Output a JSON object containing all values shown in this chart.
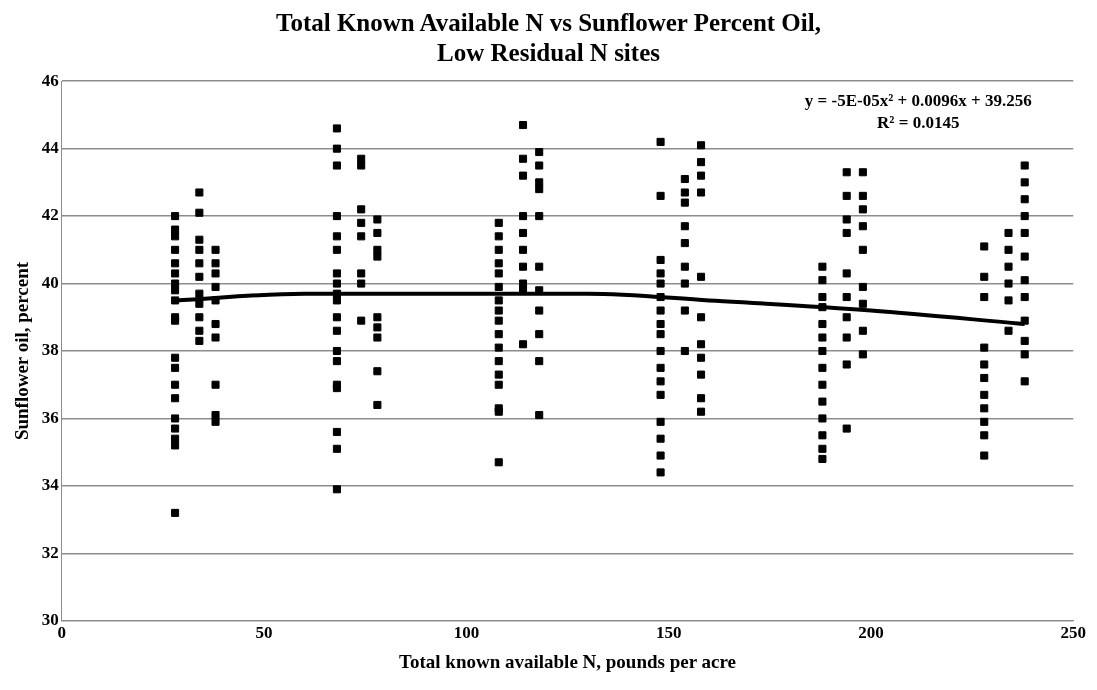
{
  "chart_data": {
    "type": "scatter",
    "title": "Total Known Available N vs Sunflower Percent Oil, Low Residual N sites",
    "xlabel": "Total known available N, pounds per acre",
    "ylabel": "Sunflower oil, percent",
    "xlim": [
      0,
      250
    ],
    "xticks": [
      0,
      50,
      100,
      150,
      200,
      250
    ],
    "ylim": [
      30,
      46
    ],
    "yticks": [
      30,
      32,
      34,
      36,
      38,
      40,
      42,
      44,
      46
    ],
    "grid": "y",
    "marker": "square",
    "annotations": [
      "y = -5E-05x² + 0.0096x + 39.256",
      "R² = 0.0145"
    ],
    "series": [
      {
        "color": "#000000",
        "x": [
          28,
          28,
          28,
          28,
          28,
          28,
          28,
          28,
          28,
          28,
          28,
          28,
          28,
          28,
          28,
          28,
          28,
          28,
          28,
          28,
          34,
          34,
          34,
          34,
          34,
          34,
          34,
          34,
          34,
          34,
          34,
          38,
          38,
          38,
          38,
          38,
          38,
          38,
          38,
          38,
          38,
          68,
          68,
          68,
          68,
          68,
          68,
          68,
          68,
          68,
          68,
          68,
          68,
          68,
          68,
          68,
          68,
          68,
          68,
          68,
          74,
          74,
          74,
          74,
          74,
          74,
          74,
          74,
          78,
          78,
          78,
          78,
          78,
          78,
          78,
          78,
          78,
          108,
          108,
          108,
          108,
          108,
          108,
          108,
          108,
          108,
          108,
          108,
          108,
          108,
          108,
          108,
          108,
          108,
          114,
          114,
          114,
          114,
          114,
          114,
          114,
          114,
          114,
          114,
          118,
          118,
          118,
          118,
          118,
          118,
          118,
          118,
          118,
          118,
          118,
          148,
          148,
          148,
          148,
          148,
          148,
          148,
          148,
          148,
          148,
          148,
          148,
          148,
          148,
          148,
          148,
          148,
          154,
          154,
          154,
          154,
          154,
          154,
          154,
          154,
          154,
          158,
          158,
          158,
          158,
          158,
          158,
          158,
          158,
          158,
          158,
          158,
          188,
          188,
          188,
          188,
          188,
          188,
          188,
          188,
          188,
          188,
          188,
          188,
          188,
          188,
          194,
          194,
          194,
          194,
          194,
          194,
          194,
          194,
          194,
          194,
          198,
          198,
          198,
          198,
          198,
          198,
          198,
          198,
          198,
          228,
          228,
          228,
          228,
          228,
          228,
          228,
          228,
          228,
          228,
          228,
          234,
          234,
          234,
          234,
          234,
          234,
          238,
          238,
          238,
          238,
          238,
          238,
          238,
          238,
          238,
          238,
          238,
          238
        ],
        "values": [
          42.0,
          41.6,
          41.4,
          41.0,
          40.6,
          40.3,
          40.0,
          39.8,
          39.5,
          39.0,
          38.9,
          37.8,
          37.5,
          37.0,
          36.6,
          36.0,
          35.7,
          35.4,
          35.2,
          33.2,
          42.7,
          42.1,
          41.3,
          41.0,
          40.6,
          40.2,
          39.7,
          39.4,
          39.0,
          38.6,
          38.3,
          41.0,
          40.6,
          40.3,
          39.9,
          39.5,
          38.8,
          38.4,
          37.0,
          36.1,
          35.9,
          44.6,
          44.0,
          43.5,
          42.0,
          41.4,
          41.0,
          40.3,
          40.0,
          39.7,
          39.5,
          39.0,
          38.6,
          38.0,
          37.7,
          37.0,
          36.9,
          35.6,
          35.1,
          33.9,
          43.7,
          43.5,
          42.2,
          41.8,
          41.4,
          40.3,
          40.0,
          38.9,
          41.9,
          41.5,
          41.0,
          40.8,
          39.0,
          38.7,
          38.4,
          37.4,
          36.4,
          41.8,
          41.4,
          41.0,
          40.6,
          40.3,
          39.9,
          39.5,
          39.2,
          38.9,
          38.5,
          38.1,
          37.7,
          37.3,
          37.0,
          36.3,
          36.2,
          34.7,
          44.7,
          43.7,
          43.2,
          42.0,
          41.5,
          41.0,
          40.5,
          40.0,
          39.8,
          38.2,
          43.9,
          43.5,
          43.0,
          42.8,
          42.0,
          40.5,
          39.8,
          39.2,
          38.5,
          37.7,
          36.1,
          44.2,
          42.6,
          40.7,
          40.3,
          40.0,
          39.6,
          39.2,
          38.8,
          38.5,
          38.0,
          37.5,
          37.1,
          36.7,
          35.9,
          35.4,
          34.9,
          34.4,
          43.1,
          42.7,
          42.4,
          41.7,
          41.2,
          40.5,
          40.0,
          39.2,
          38.0,
          44.1,
          43.6,
          43.2,
          42.7,
          40.2,
          39.0,
          38.2,
          37.8,
          37.3,
          36.6,
          36.2,
          40.5,
          40.1,
          39.6,
          39.3,
          38.8,
          38.4,
          38.0,
          37.5,
          37.0,
          36.5,
          36.0,
          35.5,
          35.1,
          34.8,
          43.3,
          42.6,
          41.9,
          41.5,
          40.3,
          39.6,
          39.0,
          38.4,
          37.6,
          35.7,
          43.3,
          42.6,
          42.2,
          41.7,
          41.0,
          39.9,
          39.4,
          38.6,
          37.9,
          41.1,
          40.2,
          39.6,
          38.1,
          37.6,
          37.2,
          36.7,
          36.3,
          35.9,
          35.5,
          34.9,
          41.5,
          41.0,
          40.5,
          40.0,
          39.5,
          38.6,
          43.5,
          43.0,
          42.5,
          42.0,
          41.5,
          40.8,
          40.1,
          39.6,
          38.9,
          38.3,
          37.9,
          37.1
        ]
      },
      {
        "type": "line",
        "color": "#000000",
        "marker": "none",
        "x": [
          28,
          60,
          96,
          130,
          160,
          200,
          238
        ],
        "values": [
          39.5,
          39.7,
          39.7,
          39.7,
          39.5,
          39.2,
          38.8
        ]
      }
    ]
  }
}
